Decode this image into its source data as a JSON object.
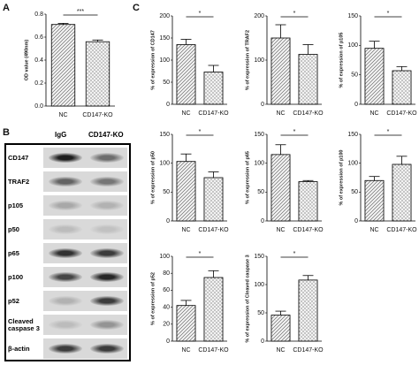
{
  "panel_labels": [
    "A",
    "B",
    "C"
  ],
  "blot": {
    "lanes": [
      "IgG",
      "CD147-KO"
    ],
    "rows": [
      "CD147",
      "TRAF2",
      "p105",
      "p50",
      "p65",
      "p100",
      "p52",
      "Cleaved caspase 3",
      "β-actin"
    ]
  },
  "chart_data": [
    {
      "type": "bar",
      "ylabel": "OD value (490nm)",
      "categories": [
        "NC",
        "CD147-KO"
      ],
      "values": [
        0.71,
        0.56
      ],
      "errors": [
        0.01,
        0.015
      ],
      "ylim": [
        0,
        0.8
      ],
      "yticks": [
        {
          "value": 0,
          "label": "0.0"
        },
        {
          "value": 0.2,
          "label": "0.2"
        },
        {
          "value": 0.4,
          "label": "0.4"
        },
        {
          "value": 0.6,
          "label": "0.6"
        },
        {
          "value": 0.8,
          "label": "0.8"
        }
      ],
      "annotation": "***",
      "color": "#555555",
      "patterns": [
        "hatch",
        "dots"
      ]
    },
    {
      "type": "bar",
      "ylabel": "% of expression of CD147",
      "categories": [
        "NC",
        "CD147-KO"
      ],
      "values": [
        135,
        73
      ],
      "errors": [
        12,
        15
      ],
      "ylim": [
        0,
        200
      ],
      "yticks": [
        0,
        50,
        100,
        150,
        200
      ],
      "annotation": "*",
      "color": "#555555",
      "patterns": [
        "hatch",
        "dots"
      ]
    },
    {
      "type": "bar",
      "ylabel": "% of expression of TRAF2",
      "categories": [
        "NC",
        "CD147-KO"
      ],
      "values": [
        150,
        113
      ],
      "errors": [
        30,
        22
      ],
      "ylim": [
        0,
        200
      ],
      "yticks": [
        0,
        100,
        200
      ],
      "annotation": "*",
      "color": "#555555",
      "patterns": [
        "hatch",
        "dots"
      ]
    },
    {
      "type": "bar",
      "ylabel": "% of expression of p105",
      "categories": [
        "NC",
        "CD147-KO"
      ],
      "values": [
        95,
        57
      ],
      "errors": [
        12,
        7
      ],
      "ylim": [
        0,
        150
      ],
      "yticks": [
        0,
        50,
        100,
        150
      ],
      "annotation": "*",
      "color": "#555555",
      "patterns": [
        "hatch",
        "dots"
      ]
    },
    {
      "type": "bar",
      "ylabel": "% of expression of p50",
      "categories": [
        "NC",
        "CD147-KO"
      ],
      "values": [
        103,
        75
      ],
      "errors": [
        13,
        10
      ],
      "ylim": [
        0,
        150
      ],
      "yticks": [
        0,
        50,
        100,
        150
      ],
      "annotation": "*",
      "color": "#555555",
      "patterns": [
        "hatch",
        "dots"
      ]
    },
    {
      "type": "bar",
      "ylabel": "% of expression of p65",
      "categories": [
        "NC",
        "CD147-KO"
      ],
      "values": [
        115,
        68
      ],
      "errors": [
        17,
        2
      ],
      "ylim": [
        0,
        150
      ],
      "yticks": [
        0,
        50,
        100,
        150
      ],
      "annotation": "*",
      "color": "#555555",
      "patterns": [
        "hatch",
        "dots"
      ]
    },
    {
      "type": "bar",
      "ylabel": "% of expression of p100",
      "categories": [
        "NC",
        "CD147-KO"
      ],
      "values": [
        70,
        98
      ],
      "errors": [
        7,
        14
      ],
      "ylim": [
        0,
        150
      ],
      "yticks": [
        0,
        50,
        100,
        150
      ],
      "annotation": "*",
      "color": "#555555",
      "patterns": [
        "hatch",
        "dots"
      ]
    },
    {
      "type": "bar",
      "ylabel": "% of expression of p52",
      "categories": [
        "NC",
        "CD147-KO"
      ],
      "values": [
        42,
        75
      ],
      "errors": [
        6,
        8
      ],
      "ylim": [
        0,
        100
      ],
      "yticks": [
        0,
        20,
        40,
        60,
        80,
        100
      ],
      "annotation": "*",
      "color": "#555555",
      "patterns": [
        "hatch",
        "dots"
      ]
    },
    {
      "type": "bar",
      "ylabel": "% of expression of Cleaved caspase 3",
      "categories": [
        "NC",
        "CD147-KO"
      ],
      "values": [
        46,
        108
      ],
      "errors": [
        7,
        8
      ],
      "ylim": [
        0,
        150
      ],
      "yticks": [
        0,
        50,
        100,
        150
      ],
      "annotation": "*",
      "color": "#555555",
      "patterns": [
        "hatch",
        "dots"
      ]
    }
  ]
}
